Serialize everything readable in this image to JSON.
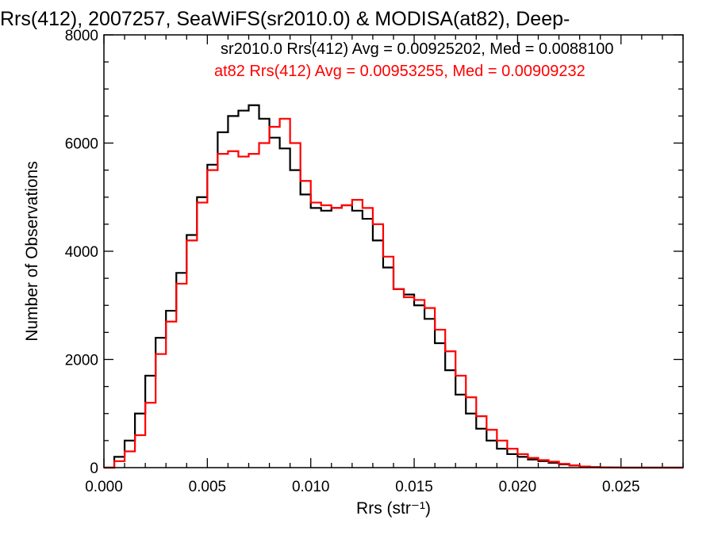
{
  "chart_data": {
    "type": "line",
    "title": "Rrs(412), 2007257, SeaWiFS(sr2010.0) & MODISA(at82), Deep-",
    "xlabel": "Rrs (str⁻¹)",
    "ylabel": "Number of Observations",
    "xlim": [
      0.0,
      0.028
    ],
    "ylim": [
      0,
      8000
    ],
    "x_ticks": [
      "0.000",
      "0.005",
      "0.010",
      "0.015",
      "0.020",
      "0.025"
    ],
    "y_ticks": [
      "0",
      "2000",
      "4000",
      "6000",
      "8000"
    ],
    "legend_position": "top-right",
    "series": [
      {
        "name": "sr2010.0 Rrs(412) Avg = 0.00925202, Med = 0.0088100",
        "color": "#000000",
        "x": [
          0.0,
          0.0005,
          0.001,
          0.0015,
          0.002,
          0.0025,
          0.003,
          0.0035,
          0.004,
          0.0045,
          0.005,
          0.0055,
          0.006,
          0.0065,
          0.007,
          0.0075,
          0.008,
          0.0085,
          0.009,
          0.0095,
          0.01,
          0.0105,
          0.011,
          0.0115,
          0.012,
          0.0125,
          0.013,
          0.0135,
          0.014,
          0.0145,
          0.015,
          0.0155,
          0.016,
          0.0165,
          0.017,
          0.0175,
          0.018,
          0.0185,
          0.019,
          0.0195,
          0.02,
          0.0205,
          0.021,
          0.0215,
          0.022,
          0.0225,
          0.023,
          0.0235,
          0.024,
          0.0245,
          0.025,
          0.028
        ],
        "y": [
          0,
          200,
          500,
          1000,
          1700,
          2400,
          2900,
          3600,
          4300,
          5000,
          5600,
          6200,
          6500,
          6600,
          6700,
          6450,
          6100,
          5900,
          5500,
          5050,
          4800,
          4750,
          4800,
          4850,
          4750,
          4600,
          4200,
          3700,
          3300,
          3200,
          3000,
          2750,
          2300,
          1800,
          1350,
          1000,
          720,
          500,
          350,
          250,
          200,
          150,
          120,
          90,
          60,
          40,
          20,
          10,
          5,
          2,
          0,
          0
        ]
      },
      {
        "name": "at82 Rrs(412) Avg = 0.00953255, Med = 0.00909232",
        "color": "#ff0000",
        "x": [
          0.0,
          0.0005,
          0.001,
          0.0015,
          0.002,
          0.0025,
          0.003,
          0.0035,
          0.004,
          0.0045,
          0.005,
          0.0055,
          0.006,
          0.0065,
          0.007,
          0.0075,
          0.008,
          0.0085,
          0.009,
          0.0095,
          0.01,
          0.0105,
          0.011,
          0.0115,
          0.012,
          0.0125,
          0.013,
          0.0135,
          0.014,
          0.0145,
          0.015,
          0.0155,
          0.016,
          0.0165,
          0.017,
          0.0175,
          0.018,
          0.0185,
          0.019,
          0.0195,
          0.02,
          0.0205,
          0.021,
          0.0215,
          0.022,
          0.0225,
          0.023,
          0.0235,
          0.024,
          0.0245,
          0.025,
          0.028
        ],
        "y": [
          0,
          120,
          300,
          600,
          1200,
          2100,
          2700,
          3400,
          4200,
          4900,
          5500,
          5800,
          5850,
          5750,
          5800,
          6000,
          6300,
          6450,
          6000,
          5300,
          4900,
          4850,
          4800,
          4850,
          4950,
          4800,
          4500,
          3900,
          3300,
          3150,
          3100,
          2950,
          2550,
          2150,
          1700,
          1300,
          950,
          700,
          500,
          350,
          250,
          180,
          140,
          110,
          70,
          40,
          20,
          10,
          5,
          2,
          0,
          0
        ]
      }
    ]
  }
}
